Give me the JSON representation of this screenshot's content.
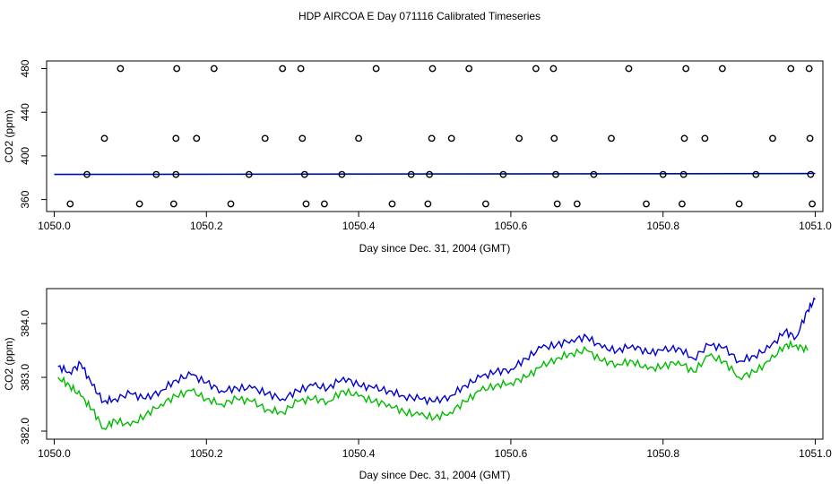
{
  "title": "HDP AIRCOA E  Day 071116  Calibrated Timeseries",
  "colors": {
    "blue": "#0000cc",
    "green": "#00bb00",
    "points": "#000000"
  },
  "chart_data": [
    {
      "type": "scatter+line",
      "xlabel": "Day since Dec. 31, 2004 (GMT)",
      "ylabel": "CO2 (ppm)",
      "xlim": [
        1049.99,
        1051.01
      ],
      "ylim": [
        349,
        487
      ],
      "x_ticks": [
        1050.0,
        1050.2,
        1050.4,
        1050.6,
        1050.8,
        1051.0
      ],
      "x_tick_labels": [
        "1050.0",
        "1050.2",
        "1050.4",
        "1050.6",
        "1050.8",
        "1051.0"
      ],
      "y_ticks": [
        360,
        400,
        440,
        480
      ],
      "y_tick_labels": [
        "360",
        "400",
        "440",
        "480"
      ],
      "points": [
        [
          1050.087,
          480
        ],
        [
          1050.161,
          480
        ],
        [
          1050.21,
          480
        ],
        [
          1050.3,
          480
        ],
        [
          1050.324,
          480
        ],
        [
          1050.423,
          480
        ],
        [
          1050.497,
          480
        ],
        [
          1050.545,
          480
        ],
        [
          1050.633,
          480
        ],
        [
          1050.656,
          480
        ],
        [
          1050.755,
          480
        ],
        [
          1050.83,
          480
        ],
        [
          1050.878,
          480
        ],
        [
          1050.968,
          480
        ],
        [
          1050.992,
          480
        ],
        [
          1050.066,
          416
        ],
        [
          1050.16,
          416
        ],
        [
          1050.187,
          416
        ],
        [
          1050.277,
          416
        ],
        [
          1050.326,
          416
        ],
        [
          1050.4,
          416
        ],
        [
          1050.496,
          416
        ],
        [
          1050.522,
          416
        ],
        [
          1050.611,
          416
        ],
        [
          1050.657,
          416
        ],
        [
          1050.732,
          416
        ],
        [
          1050.828,
          416
        ],
        [
          1050.855,
          416
        ],
        [
          1050.944,
          416
        ],
        [
          1050.993,
          416
        ],
        [
          1050.043,
          383
        ],
        [
          1050.134,
          383
        ],
        [
          1050.16,
          383
        ],
        [
          1050.256,
          383
        ],
        [
          1050.329,
          383
        ],
        [
          1050.378,
          383
        ],
        [
          1050.469,
          383
        ],
        [
          1050.493,
          383
        ],
        [
          1050.59,
          383
        ],
        [
          1050.659,
          383
        ],
        [
          1050.709,
          383
        ],
        [
          1050.8,
          383
        ],
        [
          1050.827,
          383
        ],
        [
          1050.922,
          383
        ],
        [
          1050.994,
          383
        ],
        [
          1050.021,
          356
        ],
        [
          1050.112,
          356
        ],
        [
          1050.157,
          356
        ],
        [
          1050.232,
          356
        ],
        [
          1050.331,
          356
        ],
        [
          1050.355,
          356
        ],
        [
          1050.444,
          356
        ],
        [
          1050.491,
          356
        ],
        [
          1050.567,
          356
        ],
        [
          1050.661,
          356
        ],
        [
          1050.687,
          356
        ],
        [
          1050.778,
          356
        ],
        [
          1050.825,
          356
        ],
        [
          1050.9,
          356
        ],
        [
          1050.996,
          356
        ]
      ],
      "series": [
        {
          "name": "blue",
          "start": [
            1050.0,
            383.1
          ],
          "end": [
            1051.0,
            383.9
          ]
        },
        {
          "name": "green",
          "start": [
            1050.0,
            382.9
          ],
          "end": [
            1050.99,
            383.6
          ]
        }
      ]
    },
    {
      "type": "line",
      "xlabel": "Day since Dec. 31, 2004 (GMT)",
      "ylabel": "CO2 (ppm)",
      "xlim": [
        1049.99,
        1051.01
      ],
      "ylim": [
        381.85,
        384.65
      ],
      "x_ticks": [
        1050.0,
        1050.2,
        1050.4,
        1050.6,
        1050.8,
        1051.0
      ],
      "x_tick_labels": [
        "1050.0",
        "1050.2",
        "1050.4",
        "1050.6",
        "1050.8",
        "1051.0"
      ],
      "y_ticks": [
        382.0,
        383.0,
        384.0
      ],
      "y_tick_labels": [
        "382.0",
        "383.0",
        "384.0"
      ],
      "series": [
        {
          "name": "blue",
          "x": [
            1050.005,
            1050.02,
            1050.035,
            1050.05,
            1050.065,
            1050.08,
            1050.1,
            1050.12,
            1050.14,
            1050.16,
            1050.18,
            1050.2,
            1050.22,
            1050.24,
            1050.26,
            1050.28,
            1050.3,
            1050.32,
            1050.34,
            1050.36,
            1050.38,
            1050.4,
            1050.42,
            1050.44,
            1050.46,
            1050.48,
            1050.5,
            1050.52,
            1050.54,
            1050.56,
            1050.58,
            1050.6,
            1050.62,
            1050.64,
            1050.66,
            1050.68,
            1050.7,
            1050.72,
            1050.74,
            1050.76,
            1050.78,
            1050.8,
            1050.82,
            1050.84,
            1050.86,
            1050.88,
            1050.9,
            1050.92,
            1050.94,
            1050.96,
            1050.975,
            1050.99,
            1051.0
          ],
          "y": [
            383.2,
            383.1,
            383.25,
            382.85,
            382.55,
            382.6,
            382.7,
            382.6,
            382.75,
            382.95,
            383.05,
            382.9,
            382.75,
            382.8,
            382.8,
            382.7,
            382.6,
            382.75,
            382.85,
            382.8,
            383.0,
            382.85,
            382.8,
            382.75,
            382.65,
            382.6,
            382.55,
            382.65,
            382.85,
            383.0,
            383.1,
            383.15,
            383.35,
            383.55,
            383.6,
            383.7,
            383.75,
            383.55,
            383.5,
            383.6,
            383.45,
            383.5,
            383.55,
            383.35,
            383.6,
            383.55,
            383.3,
            383.4,
            383.55,
            383.85,
            383.75,
            384.25,
            384.45
          ]
        },
        {
          "name": "green",
          "x": [
            1050.005,
            1050.02,
            1050.035,
            1050.05,
            1050.065,
            1050.08,
            1050.1,
            1050.12,
            1050.14,
            1050.16,
            1050.18,
            1050.2,
            1050.22,
            1050.24,
            1050.26,
            1050.28,
            1050.3,
            1050.32,
            1050.34,
            1050.36,
            1050.38,
            1050.4,
            1050.42,
            1050.44,
            1050.46,
            1050.48,
            1050.5,
            1050.52,
            1050.54,
            1050.56,
            1050.58,
            1050.6,
            1050.62,
            1050.64,
            1050.66,
            1050.68,
            1050.7,
            1050.72,
            1050.74,
            1050.76,
            1050.78,
            1050.8,
            1050.82,
            1050.84,
            1050.86,
            1050.88,
            1050.9,
            1050.92,
            1050.94,
            1050.96,
            1050.975,
            1050.99
          ],
          "y": [
            383.0,
            382.85,
            382.65,
            382.4,
            382.05,
            382.2,
            382.1,
            382.3,
            382.5,
            382.65,
            382.75,
            382.6,
            382.5,
            382.6,
            382.55,
            382.4,
            382.35,
            382.55,
            382.6,
            382.55,
            382.75,
            382.65,
            382.55,
            382.5,
            382.35,
            382.3,
            382.25,
            382.35,
            382.55,
            382.75,
            382.85,
            382.9,
            383.0,
            383.2,
            383.35,
            383.45,
            383.5,
            383.3,
            383.25,
            383.3,
            383.15,
            383.2,
            383.3,
            383.1,
            383.4,
            383.3,
            383.0,
            383.1,
            383.3,
            383.6,
            383.6,
            383.5
          ]
        }
      ]
    }
  ]
}
